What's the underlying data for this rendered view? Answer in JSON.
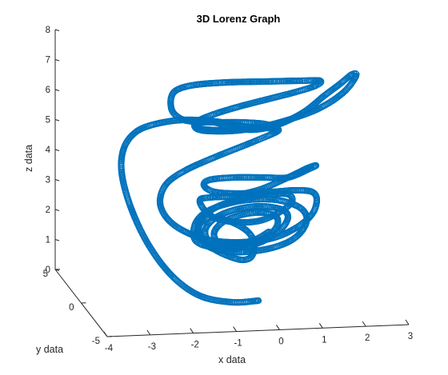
{
  "chart_data": {
    "type": "line",
    "subtype": "3d-scatter-trajectory",
    "title": "3D Lorenz Graph",
    "xlabel": "x data",
    "ylabel": "y data",
    "zlabel": "z data",
    "xlim": [
      -4,
      3
    ],
    "ylim": [
      -5,
      5
    ],
    "zlim": [
      0,
      8
    ],
    "x_ticks": [
      "-4",
      "-3",
      "-2",
      "-1",
      "0",
      "1",
      "2",
      "3"
    ],
    "y_ticks": [
      "-5",
      "0",
      "5"
    ],
    "z_ticks": [
      "0",
      "1",
      "2",
      "3",
      "4",
      "5",
      "6",
      "7",
      "8"
    ],
    "grid": false,
    "legend": "none",
    "series_color": "#0072BD",
    "marker": "circle"
  }
}
